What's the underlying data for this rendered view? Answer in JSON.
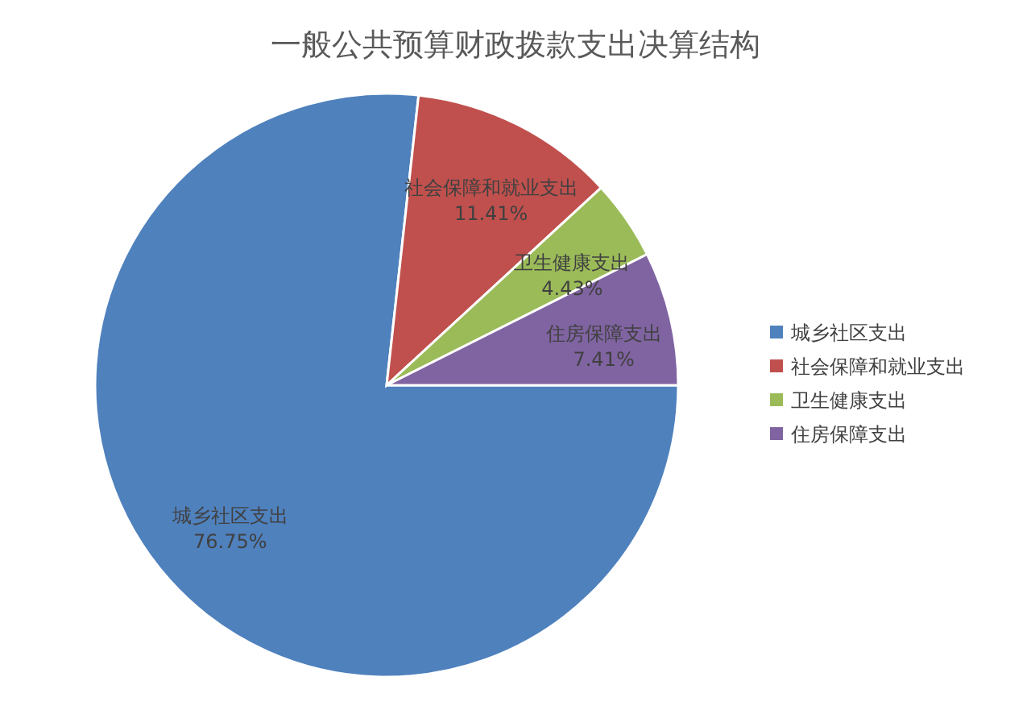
{
  "chart_data": {
    "type": "pie",
    "title": "一般公共预算财政拨款支出决算结构",
    "categories": [
      "城乡社区支出",
      "社会保障和就业支出",
      "卫生健康支出",
      "住房保障支出"
    ],
    "values": [
      76.75,
      11.41,
      4.43,
      7.41
    ],
    "colors": [
      "#4f81bd",
      "#c0504d",
      "#9bbb59",
      "#8064a2"
    ],
    "value_labels": [
      "76.75%",
      "11.41%",
      "4.43%",
      "7.41%"
    ],
    "legend": "right"
  }
}
